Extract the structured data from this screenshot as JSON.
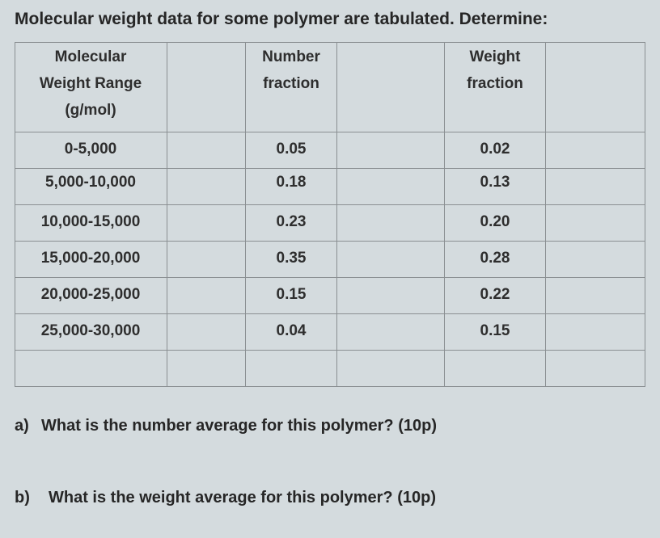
{
  "title": "Molecular weight data for some polymer are tabulated. Determine:",
  "table": {
    "headers": [
      [
        "Molecular",
        "Weight Range",
        "(g/mol)"
      ],
      [
        "Number",
        "fraction"
      ],
      [
        "Weight",
        "fraction"
      ]
    ],
    "rows": [
      [
        "0-5,000",
        "0.05",
        "0.02"
      ],
      [
        "5,000-10,000",
        "0.18",
        "0.13"
      ],
      [
        "10,000-15,000",
        "0.23",
        "0.20"
      ],
      [
        "15,000-20,000",
        "0.35",
        "0.28"
      ],
      [
        "20,000-25,000",
        "0.15",
        "0.22"
      ],
      [
        "25,000-30,000",
        "0.04",
        "0.15"
      ]
    ]
  },
  "questions": [
    {
      "label": "a)",
      "text": "What is the number average for this polymer? (10p)"
    },
    {
      "label": "b)",
      "text": "What is the weight average for this polymer? (10p)"
    }
  ]
}
